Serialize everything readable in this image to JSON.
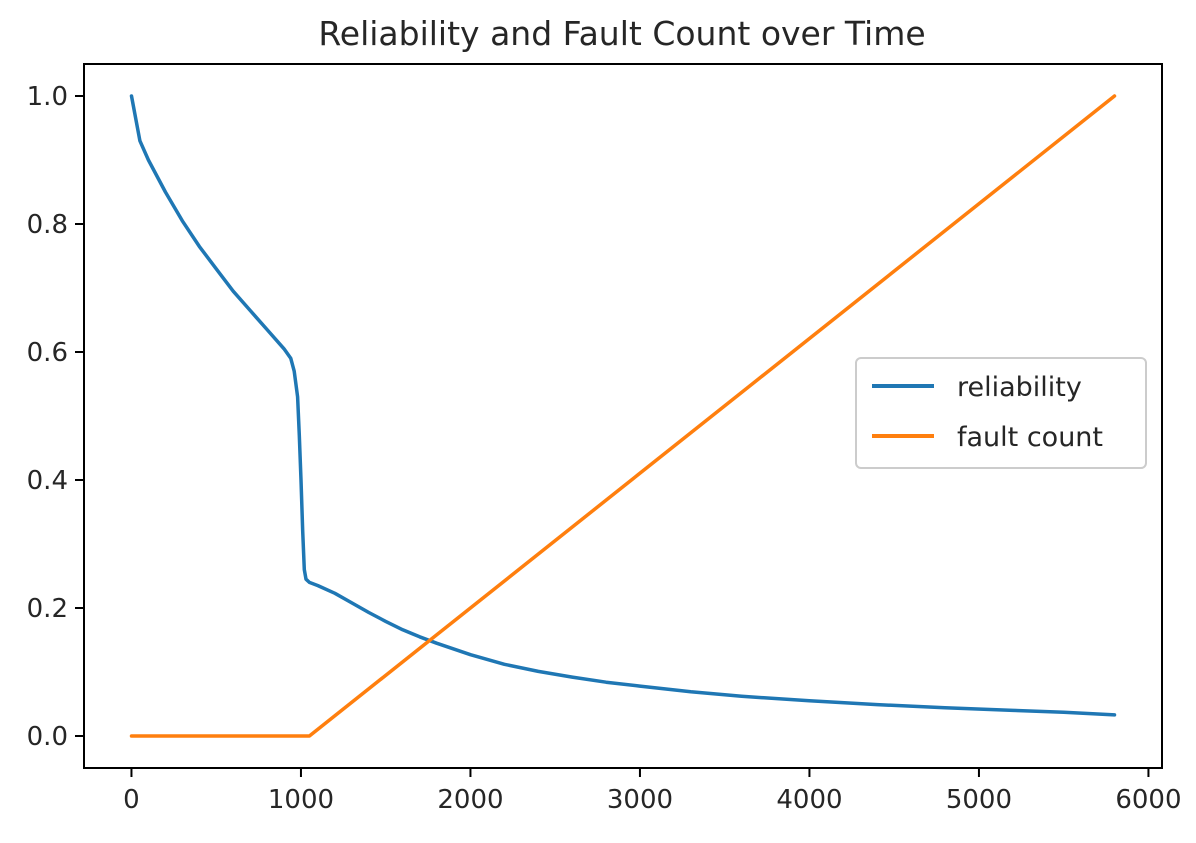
{
  "chart_data": {
    "type": "line",
    "title": "Reliability and Fault Count over Time",
    "xlabel": "",
    "ylabel": "",
    "xlim": [
      -280,
      6080
    ],
    "ylim": [
      -0.05,
      1.05
    ],
    "x_ticks": [
      "0",
      "1000",
      "2000",
      "3000",
      "4000",
      "5000",
      "6000"
    ],
    "y_ticks": [
      "0.0",
      "0.2",
      "0.4",
      "0.6",
      "0.8",
      "1.0"
    ],
    "grid": false,
    "legend_position": "center-right",
    "series": [
      {
        "name": "reliability",
        "color": "#1f77b4",
        "x": [
          0,
          50,
          100,
          200,
          300,
          400,
          500,
          600,
          700,
          800,
          900,
          940,
          960,
          980,
          990,
          1000,
          1010,
          1020,
          1030,
          1050,
          1100,
          1200,
          1300,
          1400,
          1500,
          1600,
          1700,
          1800,
          2000,
          2200,
          2400,
          2600,
          2800,
          3000,
          3300,
          3600,
          4000,
          4400,
          4800,
          5200,
          5500,
          5800
        ],
        "values": [
          1.0,
          0.93,
          0.9,
          0.85,
          0.805,
          0.765,
          0.73,
          0.695,
          0.665,
          0.635,
          0.605,
          0.59,
          0.57,
          0.53,
          0.47,
          0.4,
          0.32,
          0.26,
          0.245,
          0.24,
          0.235,
          0.223,
          0.208,
          0.193,
          0.179,
          0.166,
          0.155,
          0.145,
          0.127,
          0.112,
          0.101,
          0.092,
          0.084,
          0.078,
          0.069,
          0.062,
          0.055,
          0.049,
          0.044,
          0.04,
          0.037,
          0.033
        ]
      },
      {
        "name": "fault count",
        "color": "#ff7f0e",
        "x": [
          0,
          1000,
          1050,
          5800
        ],
        "values": [
          0.0,
          0.0,
          0.0,
          1.0
        ]
      }
    ]
  }
}
